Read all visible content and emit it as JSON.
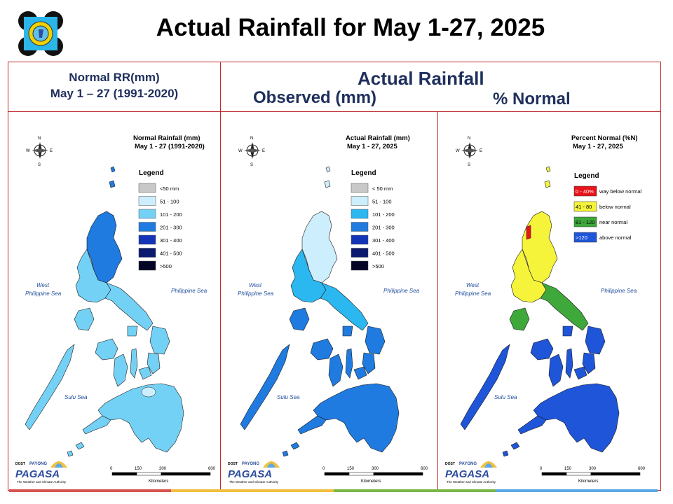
{
  "slide_title": "Actual Rainfall for May 1-27, 2025",
  "headers": {
    "left_line1": "Normal RR(mm)",
    "left_line2": "May 1 – 27 (1991-2020)",
    "right_title": "Actual Rainfall",
    "right_observed": "Observed (mm)",
    "right_percent": "% Normal"
  },
  "maps": [
    {
      "title_line1": "Normal Rainfall (mm)",
      "title_line2": "May 1 - 27 (1991-2020)",
      "legend_title": "Legend",
      "legend": [
        {
          "label": "<50 mm",
          "color": "#c8c8c8"
        },
        {
          "label": "51 - 100",
          "color": "#cdeefc"
        },
        {
          "label": "101 - 200",
          "color": "#74d1f6"
        },
        {
          "label": "201 - 300",
          "color": "#1f7be0"
        },
        {
          "label": "301 - 400",
          "color": "#1434b8"
        },
        {
          "label": "401 - 500",
          "color": "#0b1a6e"
        },
        {
          "label": ">500",
          "color": "#050525"
        }
      ],
      "sea_west": "West\nPhilippine Sea",
      "sea_east": "Philippine Sea",
      "sea_south": "Sulu Sea"
    },
    {
      "title_line1": "Actual Rainfall (mm)",
      "title_line2": "May 1 - 27, 2025",
      "legend_title": "Legend",
      "legend": [
        {
          "label": "< 50 mm",
          "color": "#c8c8c8"
        },
        {
          "label": "51 - 100",
          "color": "#cdeefc"
        },
        {
          "label": "101 - 200",
          "color": "#2bb8f0"
        },
        {
          "label": "201 - 300",
          "color": "#1f7be0"
        },
        {
          "label": "301 - 400",
          "color": "#1434b8"
        },
        {
          "label": "401 - 500",
          "color": "#0b1a6e"
        },
        {
          "label": ">500",
          "color": "#050525"
        }
      ],
      "sea_west": "West\nPhilippine Sea",
      "sea_east": "Philippine Sea",
      "sea_south": "Sulu Sea"
    },
    {
      "title_line1": "Percent Normal (%N)",
      "title_line2": "May 1 - 27, 2025",
      "legend_title": "Legend",
      "legend": [
        {
          "label": "0 - 40%",
          "desc": "way below normal",
          "color": "#e8141b",
          "text_color": "#ffffff"
        },
        {
          "label": "41 - 80",
          "desc": "below normal",
          "color": "#f5f33a",
          "text_color": "#000000"
        },
        {
          "label": "81 - 120",
          "desc": "near normal",
          "color": "#3ea83a",
          "text_color": "#000000"
        },
        {
          "label": ">120",
          "desc": "above normal",
          "color": "#1f55d8",
          "text_color": "#ffffff"
        }
      ],
      "sea_west": "West\nPhilippine Sea",
      "sea_east": "Philippine Sea",
      "sea_south": "Sulu Sea"
    }
  ],
  "scale": {
    "ticks": [
      "0",
      "150",
      "300",
      "600"
    ],
    "unit": "Kilometers"
  },
  "compass": {
    "n": "N",
    "s": "S",
    "e": "E",
    "w": "W"
  },
  "footer_logo": {
    "top": "DOST",
    "name": "PAGASA",
    "tagline": "The Weather and Climate Authority",
    "small": "PAYONG"
  },
  "bottom_strip_colors": [
    "#d9534f",
    "#f0c040",
    "#7ab648",
    "#5aa9e6"
  ]
}
